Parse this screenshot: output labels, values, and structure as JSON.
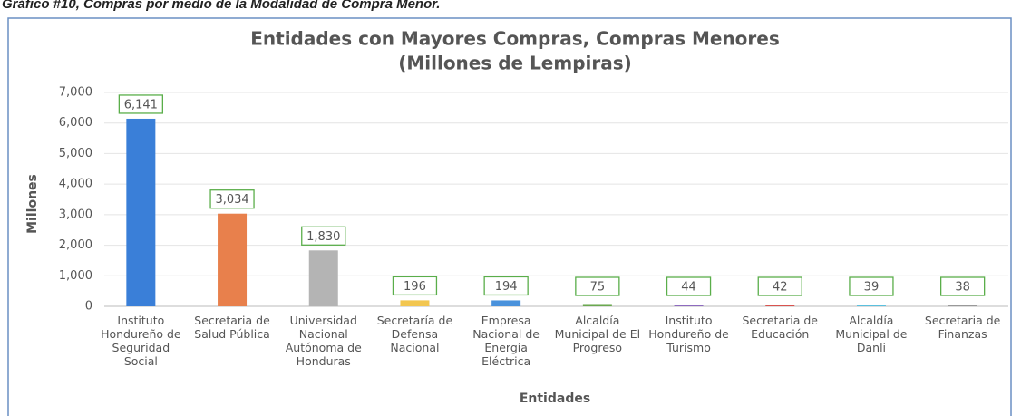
{
  "caption": "Gráfico #10, Compras por medio de la Modalidad de Compra Menor.",
  "chart_data": {
    "type": "bar",
    "title": "Entidades con Mayores Compras, Compras Menores",
    "subtitle": "(Millones de Lempiras)",
    "y_label": "Millones",
    "x_label": "Entidades",
    "categories": [
      "Instituto Hondureño de Seguridad Social",
      "Secretaria de Salud Pública",
      "Universidad Nacional Autónoma de Honduras",
      "Secretaría de Defensa Nacional",
      "Empresa Nacional de Energía Eléctrica",
      "Alcaldía Municipal de El Progreso",
      "Instituto Hondureño de Turismo",
      "Secretaria de Educación",
      "Alcaldía Municipal de Danli",
      "Secretaria de Finanzas"
    ],
    "values": [
      6141,
      3034,
      1830,
      196,
      194,
      75,
      44,
      42,
      39,
      38
    ],
    "value_labels": [
      "6,141",
      "3,034",
      "1,830",
      "196",
      "194",
      "75",
      "44",
      "42",
      "39",
      "38"
    ],
    "colors": [
      "#3a7fd8",
      "#e8804c",
      "#b4b4b4",
      "#f2c650",
      "#4a92dc",
      "#6aa84f",
      "#8e6bbf",
      "#d9534f",
      "#5bc0de",
      "#999999"
    ],
    "ylim": [
      0,
      7000
    ],
    "yticks": [
      0,
      {
        "value": 1000,
        "label": "1,000"
      },
      {
        "value": 2000,
        "label": "2,000"
      },
      {
        "value": 3000,
        "label": "3,000"
      },
      {
        "value": 4000,
        "label": "4,000"
      },
      {
        "value": 5000,
        "label": "5,000"
      },
      {
        "value": 6000,
        "label": "6,000"
      },
      {
        "value": 7000,
        "label": "7,000"
      }
    ],
    "grid": true
  }
}
